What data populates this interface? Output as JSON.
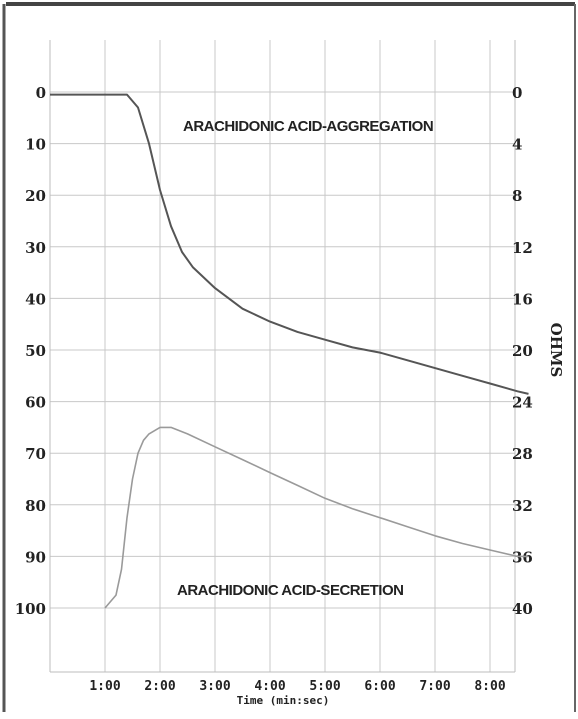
{
  "chart_data": {
    "type": "line",
    "xlabel": "Time (min:sec)",
    "ylabel_right": "OHMS",
    "x_tick_labels": [
      "1:00",
      "2:00",
      "3:00",
      "4:00",
      "5:00",
      "6:00",
      "7:00",
      "8:00"
    ],
    "x_ticks_min": [
      1,
      2,
      3,
      4,
      5,
      6,
      7,
      8
    ],
    "xlim_min": [
      0,
      8.7
    ],
    "left_ticks": [
      "0",
      "10",
      "20",
      "30",
      "40",
      "50",
      "60",
      "70",
      "80",
      "90",
      "100"
    ],
    "left_ylim": [
      0,
      110
    ],
    "right_ticks": [
      "0",
      "4",
      "8",
      "12",
      "16",
      "20",
      "24",
      "28",
      "32",
      "36",
      "40"
    ],
    "right_ylim": [
      0,
      44
    ],
    "grid": true,
    "annotations": {
      "aggregation": "ARACHIDONIC ACID-AGGREGATION",
      "secretion": "ARACHIDONIC ACID-SECRETION"
    },
    "series": [
      {
        "name": "ARACHIDONIC ACID-AGGREGATION",
        "axis": "left",
        "x_min": [
          0,
          0.5,
          1.0,
          1.4,
          1.6,
          1.8,
          2.0,
          2.2,
          2.4,
          2.6,
          3.0,
          3.5,
          4.0,
          4.5,
          5.0,
          5.5,
          6.0,
          6.5,
          7.0,
          7.5,
          8.0,
          8.5,
          8.7
        ],
        "values": [
          0.5,
          0.5,
          0.5,
          0.5,
          3,
          10,
          19,
          26,
          31,
          34,
          38,
          42,
          44.5,
          46.5,
          48,
          49.5,
          50.5,
          52,
          53.5,
          55,
          56.5,
          58,
          58.5
        ]
      },
      {
        "name": "ARACHIDONIC ACID-SECRETION",
        "axis": "right",
        "x_min": [
          1.0,
          1.2,
          1.3,
          1.4,
          1.5,
          1.6,
          1.7,
          1.8,
          2.0,
          2.2,
          2.5,
          3.0,
          3.5,
          4.0,
          4.5,
          5.0,
          5.5,
          6.0,
          6.5,
          7.0,
          7.5,
          8.0,
          8.5,
          8.7
        ],
        "values": [
          40,
          39,
          37,
          33,
          30,
          28,
          27,
          26.5,
          26,
          26,
          26.5,
          27.5,
          28.5,
          29.5,
          30.5,
          31.5,
          32.3,
          33,
          33.7,
          34.4,
          35,
          35.5,
          36,
          36
        ]
      }
    ]
  }
}
